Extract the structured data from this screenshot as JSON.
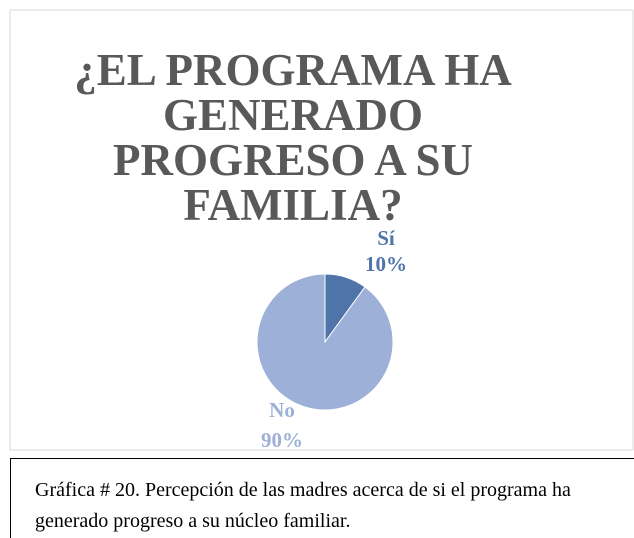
{
  "chart_data": {
    "type": "pie",
    "title": "¿EL PROGRAMA HA GENERADO PROGRESO A SU FAMILIA?",
    "categories": [
      "Sí",
      "No"
    ],
    "values": [
      10,
      90
    ],
    "value_labels": [
      "10%",
      "90%"
    ],
    "colors": [
      "#4e74aa",
      "#9cb0d8"
    ]
  },
  "caption": "Gráfica # 20. Percepción de las madres acerca de si el programa ha generado progreso a su núcleo familiar."
}
